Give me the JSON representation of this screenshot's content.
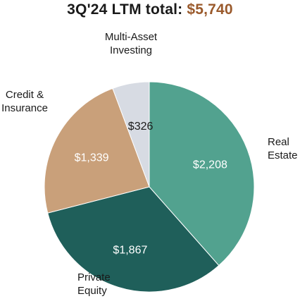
{
  "header": {
    "title_prefix": "3Q'24 LTM total:",
    "title_total": "$5,740"
  },
  "chart_data": {
    "type": "pie",
    "title": "3Q'24 LTM total: $5,740",
    "total": 5740,
    "slices": [
      {
        "label": "Real Estate",
        "label_lines": [
          "Real",
          "Estate"
        ],
        "value": 2208,
        "value_label": "$2,208",
        "color": "#52a28f",
        "text_color": "#ffffff"
      },
      {
        "label": "Private Equity",
        "label_lines": [
          "Private",
          "Equity"
        ],
        "value": 1867,
        "value_label": "$1,867",
        "color": "#1f5f5a",
        "text_color": "#ffffff"
      },
      {
        "label": "Credit & Insurance",
        "label_lines": [
          "Credit &",
          "Insurance"
        ],
        "value": 1339,
        "value_label": "$1,339",
        "color": "#c9a07a",
        "text_color": "#ffffff"
      },
      {
        "label": "Multi-Asset Investing",
        "label_lines": [
          "Multi-Asset",
          "Investing"
        ],
        "value": 326,
        "value_label": "$326",
        "color": "#d7dbe3",
        "text_color": "#1a1a1a"
      }
    ],
    "start_angle_deg": 0,
    "direction": "clockwise"
  }
}
